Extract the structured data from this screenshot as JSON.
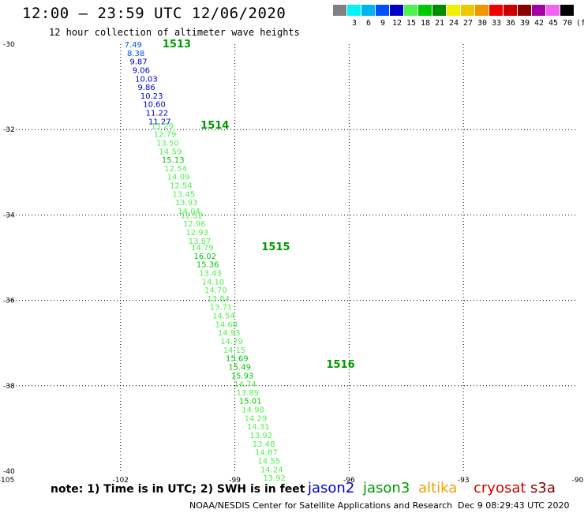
{
  "chart_data": {
    "type": "scatter",
    "title": "12:00 — 23:59 UTC 12/06/2020",
    "subtitle": "12 hour collection of altimeter wave heights",
    "xlim": [
      -105,
      -90
    ],
    "ylim": [
      -40,
      -30
    ],
    "x_ticks": [
      "-105",
      "-102",
      "-99",
      "-96",
      "-93",
      "-90"
    ],
    "y_ticks": [
      "-30",
      "-32",
      "-34",
      "-36",
      "-38",
      "-40"
    ],
    "grid": "dotted",
    "legend": {
      "placement": "top-right",
      "unit": "(ft)",
      "bins": [
        {
          "label": "",
          "color": "#808080"
        },
        {
          "label": "3",
          "color": "#00f5f5"
        },
        {
          "label": "6",
          "color": "#00b4f0"
        },
        {
          "label": "9",
          "color": "#0050ff"
        },
        {
          "label": "12",
          "color": "#0000c8"
        },
        {
          "label": "15",
          "color": "#50f050"
        },
        {
          "label": "18",
          "color": "#00c800"
        },
        {
          "label": "21",
          "color": "#008c00"
        },
        {
          "label": "24",
          "color": "#f0f000"
        },
        {
          "label": "27",
          "color": "#f0c800"
        },
        {
          "label": "30",
          "color": "#f09600"
        },
        {
          "label": "33",
          "color": "#f00000"
        },
        {
          "label": "36",
          "color": "#c80000"
        },
        {
          "label": "39",
          "color": "#8c0000"
        },
        {
          "label": "42",
          "color": "#a000a0"
        },
        {
          "label": "45",
          "color": "#f064f0"
        },
        {
          "label": "70",
          "color": "#000000"
        }
      ]
    },
    "time_labels": [
      {
        "text": "1513",
        "lat": -30.0,
        "lon": -100.9
      },
      {
        "text": "1514",
        "lat": -31.9,
        "lon": -99.9
      },
      {
        "text": "1515",
        "lat": -34.75,
        "lon": -98.3
      },
      {
        "text": "1516",
        "lat": -37.5,
        "lon": -96.6
      }
    ],
    "series": [
      {
        "satellite": "jason3",
        "points": [
          {
            "lat": -30.0,
            "lon": -101.9,
            "swh": 7.49
          },
          {
            "lat": -30.2,
            "lon": -101.83,
            "swh": 8.38
          },
          {
            "lat": -30.4,
            "lon": -101.76,
            "swh": 9.87
          },
          {
            "lat": -30.6,
            "lon": -101.69,
            "swh": 9.06
          },
          {
            "lat": -30.8,
            "lon": -101.62,
            "swh": 10.03
          },
          {
            "lat": -31.0,
            "lon": -101.55,
            "swh": 9.86
          },
          {
            "lat": -31.2,
            "lon": -101.48,
            "swh": 10.23
          },
          {
            "lat": -31.4,
            "lon": -101.41,
            "swh": 10.6
          },
          {
            "lat": -31.6,
            "lon": -101.34,
            "swh": 11.22
          },
          {
            "lat": -31.8,
            "lon": -101.27,
            "swh": 11.27
          },
          {
            "lat": -31.9,
            "lon": -101.2,
            "swh": 13.29
          },
          {
            "lat": -32.1,
            "lon": -101.13,
            "swh": 12.79
          },
          {
            "lat": -32.3,
            "lon": -101.06,
            "swh": 13.5
          },
          {
            "lat": -32.5,
            "lon": -100.99,
            "swh": 14.59
          },
          {
            "lat": -32.7,
            "lon": -100.92,
            "swh": 15.13
          },
          {
            "lat": -32.9,
            "lon": -100.85,
            "swh": 12.54
          },
          {
            "lat": -33.1,
            "lon": -100.78,
            "swh": 14.09
          },
          {
            "lat": -33.3,
            "lon": -100.71,
            "swh": 12.54
          },
          {
            "lat": -33.5,
            "lon": -100.64,
            "swh": 13.45
          },
          {
            "lat": -33.7,
            "lon": -100.57,
            "swh": 13.93
          },
          {
            "lat": -33.9,
            "lon": -100.5,
            "swh": 14.04
          },
          {
            "lat": -34.0,
            "lon": -100.43,
            "swh": 12.52
          },
          {
            "lat": -34.2,
            "lon": -100.36,
            "swh": 12.96
          },
          {
            "lat": -34.4,
            "lon": -100.29,
            "swh": 12.93
          },
          {
            "lat": -34.6,
            "lon": -100.22,
            "swh": 13.87
          },
          {
            "lat": -34.75,
            "lon": -100.15,
            "swh": 14.79
          },
          {
            "lat": -34.95,
            "lon": -100.08,
            "swh": 16.02
          },
          {
            "lat": -35.15,
            "lon": -100.01,
            "swh": 15.36
          },
          {
            "lat": -35.35,
            "lon": -99.94,
            "swh": 13.43
          },
          {
            "lat": -35.55,
            "lon": -99.87,
            "swh": 14.1
          },
          {
            "lat": -35.75,
            "lon": -99.8,
            "swh": 14.7
          },
          {
            "lat": -35.95,
            "lon": -99.73,
            "swh": 13.84
          },
          {
            "lat": -36.15,
            "lon": -99.66,
            "swh": 13.71
          },
          {
            "lat": -36.35,
            "lon": -99.59,
            "swh": 14.54
          },
          {
            "lat": -36.55,
            "lon": -99.52,
            "swh": 14.68
          },
          {
            "lat": -36.75,
            "lon": -99.45,
            "swh": 14.93
          },
          {
            "lat": -36.95,
            "lon": -99.38,
            "swh": 14.79
          },
          {
            "lat": -37.15,
            "lon": -99.31,
            "swh": 14.15
          },
          {
            "lat": -37.35,
            "lon": -99.24,
            "swh": 15.69
          },
          {
            "lat": -37.55,
            "lon": -99.17,
            "swh": 15.49
          },
          {
            "lat": -37.75,
            "lon": -99.1,
            "swh": 15.93
          },
          {
            "lat": -37.95,
            "lon": -99.03,
            "swh": 14.74
          },
          {
            "lat": -38.15,
            "lon": -98.96,
            "swh": 13.89
          },
          {
            "lat": -38.35,
            "lon": -98.89,
            "swh": 15.01
          },
          {
            "lat": -38.55,
            "lon": -98.82,
            "swh": 14.98
          },
          {
            "lat": -38.75,
            "lon": -98.75,
            "swh": 14.29
          },
          {
            "lat": -38.95,
            "lon": -98.68,
            "swh": 14.31
          },
          {
            "lat": -39.15,
            "lon": -98.61,
            "swh": 13.92
          },
          {
            "lat": -39.35,
            "lon": -98.54,
            "swh": 13.48
          },
          {
            "lat": -39.55,
            "lon": -98.47,
            "swh": 14.87
          },
          {
            "lat": -39.75,
            "lon": -98.4,
            "swh": 14.55
          },
          {
            "lat": -39.95,
            "lon": -98.33,
            "swh": 14.24
          },
          {
            "lat": -40.15,
            "lon": -98.26,
            "swh": 13.92
          }
        ]
      }
    ]
  },
  "note": "note: 1) Time is in UTC; 2) SWH is in feet",
  "satellites": [
    {
      "name": "jason2",
      "color": "#0000d0"
    },
    {
      "name": "jason3",
      "color": "#009a00"
    },
    {
      "name": "altika",
      "color": "#f0a000"
    },
    {
      "name": "cryosat",
      "color": "#d00000"
    },
    {
      "name": "s3a",
      "color": "#800000"
    }
  ],
  "footer": {
    "source": "NOAA/NESDIS Center for Satellite Applications and Research",
    "generated": "Dec  9 08:29:43 UTC 2020"
  }
}
